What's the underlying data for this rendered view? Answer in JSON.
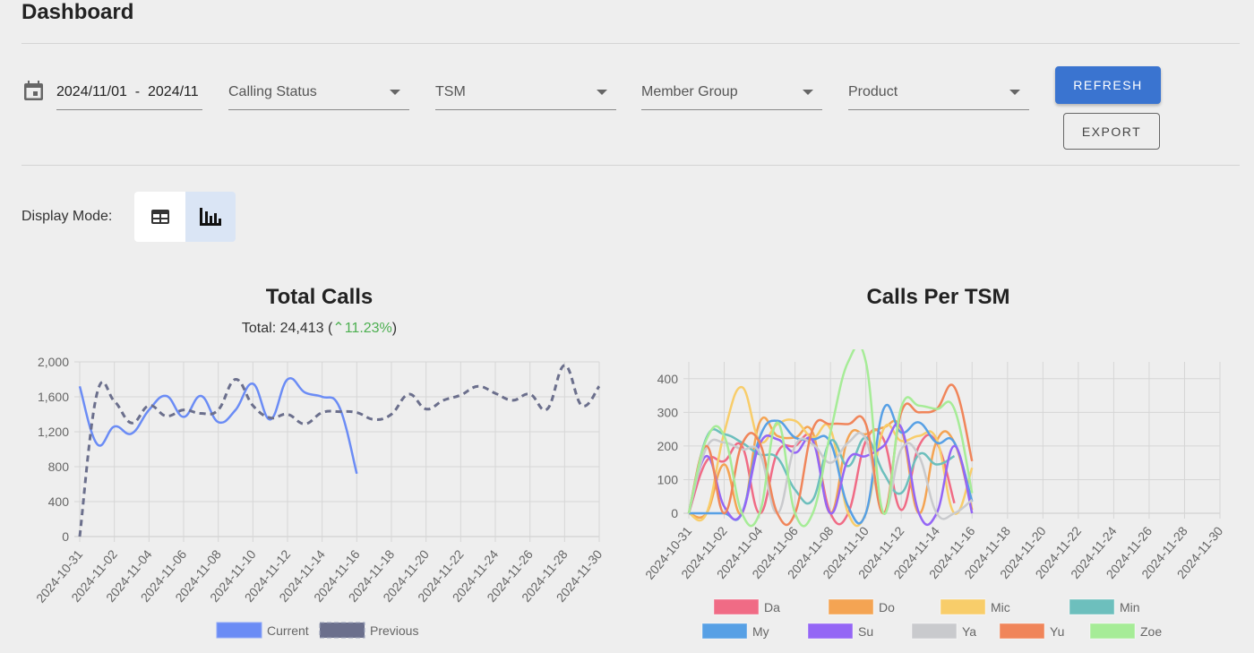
{
  "page": {
    "title": "Dashboard"
  },
  "filters": {
    "date_range": "2024/11/01  -  2024/11",
    "calling_status": "Calling Status",
    "tsm": "TSM",
    "member_group": "Member Group",
    "product": "Product"
  },
  "buttons": {
    "refresh": "REFRESH",
    "export": "EXPORT"
  },
  "display_mode": {
    "label": "Display Mode:",
    "options": [
      "table-icon",
      "bar-chart-icon"
    ],
    "selected": "bar-chart-icon"
  },
  "summary": {
    "prefix": "Total: ",
    "total": "24,413",
    "open": " (",
    "change": "11.23%",
    "close": ")",
    "trend": "up",
    "trend_color": "#4caf50"
  },
  "chart_data": [
    {
      "type": "line",
      "title": "Total Calls",
      "xlabel": "",
      "ylabel": "",
      "ylim": [
        0,
        2000
      ],
      "yticks": [
        "0",
        "400",
        "800",
        "1,200",
        "1,600",
        "2,000"
      ],
      "ytick_values": [
        0,
        400,
        800,
        1200,
        1600,
        2000
      ],
      "grid": true,
      "legend": "bottom",
      "x": [
        "2024-10-31",
        "2024-11-01",
        "2024-11-02",
        "2024-11-03",
        "2024-11-04",
        "2024-11-05",
        "2024-11-06",
        "2024-11-07",
        "2024-11-08",
        "2024-11-09",
        "2024-11-10",
        "2024-11-11",
        "2024-11-12",
        "2024-11-13",
        "2024-11-14",
        "2024-11-15",
        "2024-11-16",
        "2024-11-17",
        "2024-11-18",
        "2024-11-19",
        "2024-11-20",
        "2024-11-21",
        "2024-11-22",
        "2024-11-23",
        "2024-11-24",
        "2024-11-25",
        "2024-11-26",
        "2024-11-27",
        "2024-11-28",
        "2024-11-29",
        "2024-11-30"
      ],
      "xticks": [
        "2024-10-31",
        "2024-11-02",
        "2024-11-04",
        "2024-11-06",
        "2024-11-08",
        "2024-11-10",
        "2024-11-12",
        "2024-11-14",
        "2024-11-16",
        "2024-11-18",
        "2024-11-20",
        "2024-11-22",
        "2024-11-24",
        "2024-11-26",
        "2024-11-28",
        "2024-11-30"
      ],
      "series": [
        {
          "name": "Current",
          "color": "#6b8cf5",
          "dashed": false,
          "values": [
            1720,
            1060,
            1260,
            1180,
            1450,
            1610,
            1370,
            1610,
            1310,
            1450,
            1750,
            1340,
            1800,
            1650,
            1600,
            1480,
            720
          ]
        },
        {
          "name": "Previous",
          "color": "#6b6f8c",
          "dashed": true,
          "values": [
            0,
            1640,
            1550,
            1300,
            1500,
            1380,
            1450,
            1410,
            1450,
            1800,
            1500,
            1360,
            1400,
            1290,
            1420,
            1430,
            1420,
            1340,
            1400,
            1630,
            1460,
            1560,
            1620,
            1720,
            1640,
            1560,
            1630,
            1460,
            1960,
            1500,
            1720
          ]
        }
      ]
    },
    {
      "type": "line",
      "title": "Calls Per TSM",
      "xlabel": "",
      "ylabel": "",
      "ylim": [
        0,
        450
      ],
      "yticks": [
        "0",
        "100",
        "200",
        "300",
        "400"
      ],
      "ytick_values": [
        0,
        100,
        200,
        300,
        400
      ],
      "grid": true,
      "legend": "bottom",
      "x": [
        "2024-10-31",
        "2024-11-01",
        "2024-11-02",
        "2024-11-03",
        "2024-11-04",
        "2024-11-05",
        "2024-11-06",
        "2024-11-07",
        "2024-11-08",
        "2024-11-09",
        "2024-11-10",
        "2024-11-11",
        "2024-11-12",
        "2024-11-13",
        "2024-11-14",
        "2024-11-15",
        "2024-11-16",
        "2024-11-17",
        "2024-11-18",
        "2024-11-19",
        "2024-11-20",
        "2024-11-21",
        "2024-11-22",
        "2024-11-23",
        "2024-11-24",
        "2024-11-25",
        "2024-11-26",
        "2024-11-27",
        "2024-11-28",
        "2024-11-29",
        "2024-11-30"
      ],
      "xticks": [
        "2024-10-31",
        "2024-11-02",
        "2024-11-04",
        "2024-11-06",
        "2024-11-08",
        "2024-11-10",
        "2024-11-12",
        "2024-11-14",
        "2024-11-16",
        "2024-11-18",
        "2024-11-20",
        "2024-11-22",
        "2024-11-24",
        "2024-11-26",
        "2024-11-28",
        "2024-11-30"
      ],
      "series": [
        {
          "name": "Da",
          "color": "#f06b85",
          "values": [
            0,
            155,
            155,
            200,
            0,
            180,
            200,
            220,
            0,
            0,
            215,
            220,
            10,
            200,
            210,
            30
          ]
        },
        {
          "name": "Do",
          "color": "#f4a453",
          "values": [
            0,
            0,
            145,
            0,
            270,
            230,
            225,
            240,
            0,
            225,
            235,
            255,
            250,
            0,
            215,
            210,
            10
          ]
        },
        {
          "name": "Mic",
          "color": "#f8cd6a",
          "values": [
            0,
            0,
            240,
            375,
            215,
            265,
            275,
            225,
            250,
            0,
            0,
            250,
            215,
            230,
            220,
            0,
            135
          ]
        },
        {
          "name": "Min",
          "color": "#6dbfbd",
          "values": [
            0,
            225,
            235,
            210,
            175,
            165,
            70,
            40,
            215,
            140,
            225,
            120,
            60,
            175,
            145,
            170
          ]
        },
        {
          "name": "My",
          "color": "#57a0e5",
          "values": [
            0,
            0,
            0,
            0,
            225,
            275,
            225,
            220,
            210,
            20,
            0,
            310,
            240,
            270,
            210,
            210,
            35
          ]
        },
        {
          "name": "Su",
          "color": "#9466f5",
          "values": [
            0,
            170,
            20,
            0,
            205,
            220,
            180,
            215,
            0,
            160,
            170,
            200,
            255,
            0,
            0,
            200,
            0
          ]
        },
        {
          "name": "Ya",
          "color": "#c9cacd",
          "values": [
            0,
            195,
            210,
            190,
            180,
            0,
            200,
            205,
            150,
            210,
            220,
            0,
            190,
            170,
            0,
            0,
            40
          ]
        },
        {
          "name": "Yu",
          "color": "#f0855a",
          "values": [
            0,
            200,
            0,
            205,
            210,
            0,
            0,
            250,
            265,
            265,
            265,
            0,
            300,
            300,
            310,
            375,
            155
          ]
        },
        {
          "name": "Zoe",
          "color": "#a6ec97",
          "values": [
            0,
            220,
            230,
            0,
            0,
            270,
            0,
            0,
            240,
            450,
            450,
            0,
            315,
            320,
            310,
            310,
            60
          ]
        }
      ]
    }
  ]
}
